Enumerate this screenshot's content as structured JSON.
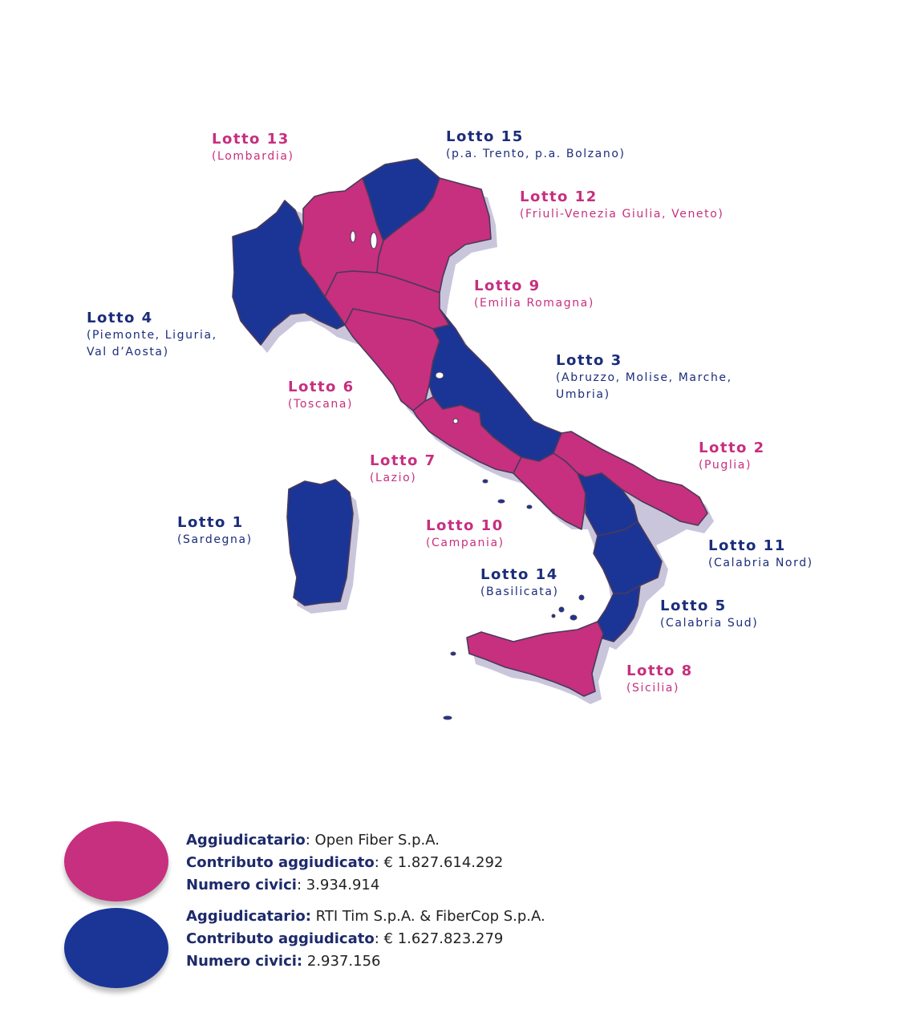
{
  "colors": {
    "open_fiber": "#c72f7f",
    "tim_fibercop": "#1b3596",
    "shadow": "#c9c6dc",
    "border": "#4a3a5a"
  },
  "lots": {
    "lot13": {
      "title": "Lotto 13",
      "subtitle": "(Lombardia)",
      "group": "open_fiber"
    },
    "lot15": {
      "title": "Lotto 15",
      "subtitle": "(p.a. Trento, p.a. Bolzano)",
      "group": "tim_fibercop"
    },
    "lot12": {
      "title": "Lotto 12",
      "subtitle": "(Friuli-Venezia Giulia, Veneto)",
      "group": "open_fiber"
    },
    "lot9": {
      "title": "Lotto 9",
      "subtitle": "(Emilia Romagna)",
      "group": "open_fiber"
    },
    "lot4": {
      "title": "Lotto 4",
      "subtitle_line1": "(Piemonte, Liguria,",
      "subtitle_line2": "Val d’Aosta)",
      "group": "tim_fibercop"
    },
    "lot3": {
      "title": "Lotto 3",
      "subtitle_line1": "(Abruzzo, Molise, Marche,",
      "subtitle_line2": "Umbria)",
      "group": "tim_fibercop"
    },
    "lot6": {
      "title": "Lotto 6",
      "subtitle": "(Toscana)",
      "group": "open_fiber"
    },
    "lot2": {
      "title": "Lotto 2",
      "subtitle": "(Puglia)",
      "group": "open_fiber"
    },
    "lot7": {
      "title": "Lotto 7",
      "subtitle": "(Lazio)",
      "group": "open_fiber"
    },
    "lot1": {
      "title": "Lotto 1",
      "subtitle": "(Sardegna)",
      "group": "tim_fibercop"
    },
    "lot10": {
      "title": "Lotto 10",
      "subtitle": "(Campania)",
      "group": "open_fiber"
    },
    "lot11": {
      "title": "Lotto 11",
      "subtitle": "(Calabria Nord)",
      "group": "tim_fibercop"
    },
    "lot14": {
      "title": "Lotto 14",
      "subtitle": "(Basilicata)",
      "group": "tim_fibercop"
    },
    "lot5": {
      "title": "Lotto 5",
      "subtitle": "(Calabria Sud)",
      "group": "tim_fibercop"
    },
    "lot8": {
      "title": "Lotto 8",
      "subtitle": "(Sicilia)",
      "group": "open_fiber"
    }
  },
  "legend": {
    "open_fiber": {
      "award_key": "Aggiudicatario",
      "award_value": ": Open Fiber S.p.A.",
      "contribution_key": "Contributo aggiudicato",
      "contribution_value": ": € 1.827.614.292",
      "addresses_key": "Numero civici",
      "addresses_value": ": 3.934.914"
    },
    "tim_fibercop": {
      "award_key": "Aggiudicatario:",
      "award_value": " RTI Tim S.p.A. & FiberCop S.p.A.",
      "contribution_key": "Contributo aggiudicato",
      "contribution_value": ": € 1.627.823.279",
      "addresses_key": "Numero civici:",
      "addresses_value": " 2.937.156"
    }
  }
}
